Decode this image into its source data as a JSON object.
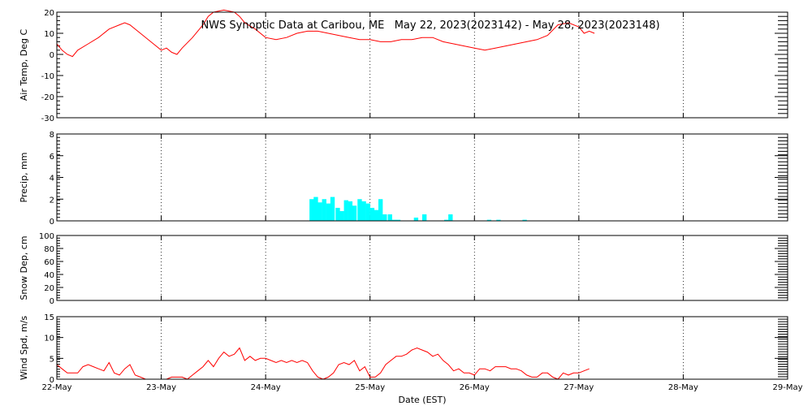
{
  "chart_data": {
    "type": "line",
    "title": "NWS Synoptic Data at Caribou, ME   May 22, 2023(2023142) - May 28, 2023(2023148)",
    "xlabel": "Date (EST)",
    "x_tick_labels": [
      "22-May",
      "23-May",
      "24-May",
      "25-May",
      "26-May",
      "27-May",
      "28-May",
      "29-May"
    ],
    "x_range_days": [
      0,
      7
    ],
    "grid": true,
    "line_color": "#ff0000",
    "bar_color": "#00ffff",
    "panels": [
      {
        "id": "air-temp",
        "type": "line",
        "ylabel": "Air Temp, Deg C",
        "ylim": [
          -30,
          20
        ],
        "yticks": [
          -30,
          -20,
          -10,
          0,
          10,
          20
        ],
        "ytick_labels": [
          "-30",
          "-20",
          "-10",
          "0",
          "10",
          "20"
        ],
        "series": [
          {
            "x": [
              0,
              0.05,
              0.1,
              0.15,
              0.2,
              0.3,
              0.4,
              0.5,
              0.6,
              0.65,
              0.7,
              0.8,
              0.9,
              1.0,
              1.05,
              1.1,
              1.15,
              1.2,
              1.3,
              1.4,
              1.45,
              1.5,
              1.6,
              1.7,
              1.75,
              1.8,
              1.9,
              2.0,
              2.1,
              2.2,
              2.3,
              2.4,
              2.5,
              2.6,
              2.7,
              2.8,
              2.9,
              3.0,
              3.1,
              3.2,
              3.3,
              3.4,
              3.5,
              3.6,
              3.7,
              3.8,
              3.9,
              4.0,
              4.1,
              4.2,
              4.3,
              4.4,
              4.5,
              4.6,
              4.7,
              4.8,
              4.9,
              5.0,
              5.05,
              5.1,
              5.15
            ],
            "y": [
              5,
              2,
              0,
              -1,
              2,
              5,
              8,
              12,
              14,
              15,
              14,
              10,
              6,
              2,
              3,
              1,
              0,
              3,
              8,
              14,
              18,
              20,
              21,
              20,
              18,
              15,
              12,
              8,
              7,
              8,
              10,
              11,
              11,
              10,
              9,
              8,
              7,
              7,
              6,
              6,
              7,
              7,
              8,
              8,
              6,
              5,
              4,
              3,
              2,
              3,
              4,
              5,
              6,
              7,
              9,
              14,
              15,
              13,
              10,
              11,
              10
            ]
          }
        ]
      },
      {
        "id": "precip",
        "type": "bar",
        "ylabel": "Precip, mm",
        "ylim": [
          0,
          8
        ],
        "yticks": [
          0,
          2,
          4,
          6,
          8
        ],
        "ytick_labels": [
          "0",
          "2",
          "4",
          "6",
          "8"
        ],
        "bar_width_days": 0.0417,
        "x": [
          2.42,
          2.46,
          2.5,
          2.54,
          2.58,
          2.62,
          2.67,
          2.71,
          2.75,
          2.79,
          2.83,
          2.88,
          2.92,
          2.96,
          3.0,
          3.04,
          3.08,
          3.12,
          3.17,
          3.21,
          3.25,
          3.42,
          3.5,
          3.71,
          3.75,
          4.12,
          4.21,
          4.46
        ],
        "values": [
          2.0,
          2.2,
          1.7,
          2.0,
          1.6,
          2.2,
          1.2,
          0.9,
          1.9,
          1.8,
          1.4,
          2.0,
          1.8,
          1.6,
          1.2,
          1.0,
          2.0,
          0.6,
          0.6,
          0.1,
          0.1,
          0.3,
          0.6,
          0.1,
          0.6,
          0.1,
          0.1,
          0.1
        ]
      },
      {
        "id": "snow-depth",
        "type": "line",
        "ylabel": "Snow Dep, cm",
        "ylim": [
          0,
          100
        ],
        "yticks": [
          0,
          20,
          40,
          60,
          80,
          100
        ],
        "ytick_labels": [
          "0",
          "20",
          "40",
          "60",
          "80",
          "100"
        ],
        "series": []
      },
      {
        "id": "wind-speed",
        "type": "line",
        "ylabel": "Wind Spd, m/s",
        "ylim": [
          0,
          15
        ],
        "yticks": [
          0,
          5,
          10,
          15
        ],
        "ytick_labels": [
          "0",
          "5",
          "10",
          "15"
        ],
        "series": [
          {
            "x": [
              0,
              0.05,
              0.1,
              0.15,
              0.2,
              0.25,
              0.3,
              0.35,
              0.4,
              0.45,
              0.5,
              0.55,
              0.6,
              0.65,
              0.7,
              0.75,
              0.8,
              0.85,
              0.9,
              0.95,
              1.0,
              1.05,
              1.1,
              1.15,
              1.2,
              1.25,
              1.3,
              1.35,
              1.4,
              1.45,
              1.5,
              1.55,
              1.6,
              1.65,
              1.7,
              1.75,
              1.8,
              1.85,
              1.9,
              1.95,
              2.0,
              2.05,
              2.1,
              2.15,
              2.2,
              2.25,
              2.3,
              2.35,
              2.4,
              2.45,
              2.5,
              2.55,
              2.6,
              2.65,
              2.7,
              2.75,
              2.8,
              2.85,
              2.9,
              2.95,
              3.0,
              3.05,
              3.1,
              3.15,
              3.2,
              3.25,
              3.3,
              3.35,
              3.4,
              3.45,
              3.5,
              3.55,
              3.6,
              3.65,
              3.7,
              3.75,
              3.8,
              3.85,
              3.9,
              3.95,
              4.0,
              4.05,
              4.1,
              4.15,
              4.2,
              4.25,
              4.3,
              4.35,
              4.4,
              4.45,
              4.5,
              4.55,
              4.6,
              4.65,
              4.7,
              4.75,
              4.8,
              4.85,
              4.9,
              4.95,
              5.0,
              5.05,
              5.1
            ],
            "y": [
              3.5,
              2.5,
              1.5,
              1.5,
              1.5,
              3.0,
              3.5,
              3.0,
              2.5,
              2.0,
              4.0,
              1.5,
              1.0,
              2.5,
              3.5,
              1.0,
              0.5,
              0.0,
              0.0,
              0.0,
              0.0,
              0.0,
              0.5,
              0.5,
              0.5,
              0.0,
              1.0,
              2.0,
              3.0,
              4.5,
              3.0,
              5.0,
              6.5,
              5.5,
              6.0,
              7.5,
              4.5,
              5.5,
              4.5,
              5.0,
              5.0,
              4.5,
              4.0,
              4.5,
              4.0,
              4.5,
              4.0,
              4.5,
              4.0,
              2.0,
              0.5,
              0.0,
              0.5,
              1.5,
              3.5,
              4.0,
              3.5,
              4.5,
              2.0,
              3.0,
              0.5,
              0.5,
              1.5,
              3.5,
              4.5,
              5.5,
              5.5,
              6.0,
              7.0,
              7.5,
              7.0,
              6.5,
              5.5,
              6.0,
              4.5,
              3.5,
              2.0,
              2.5,
              1.5,
              1.5,
              1.0,
              2.5,
              2.5,
              2.0,
              3.0,
              3.0,
              3.0,
              2.5,
              2.5,
              2.0,
              1.0,
              0.5,
              0.5,
              1.5,
              1.5,
              0.5,
              0.0,
              1.5,
              1.0,
              1.5,
              1.5,
              2.0,
              2.5
            ]
          }
        ]
      }
    ]
  }
}
